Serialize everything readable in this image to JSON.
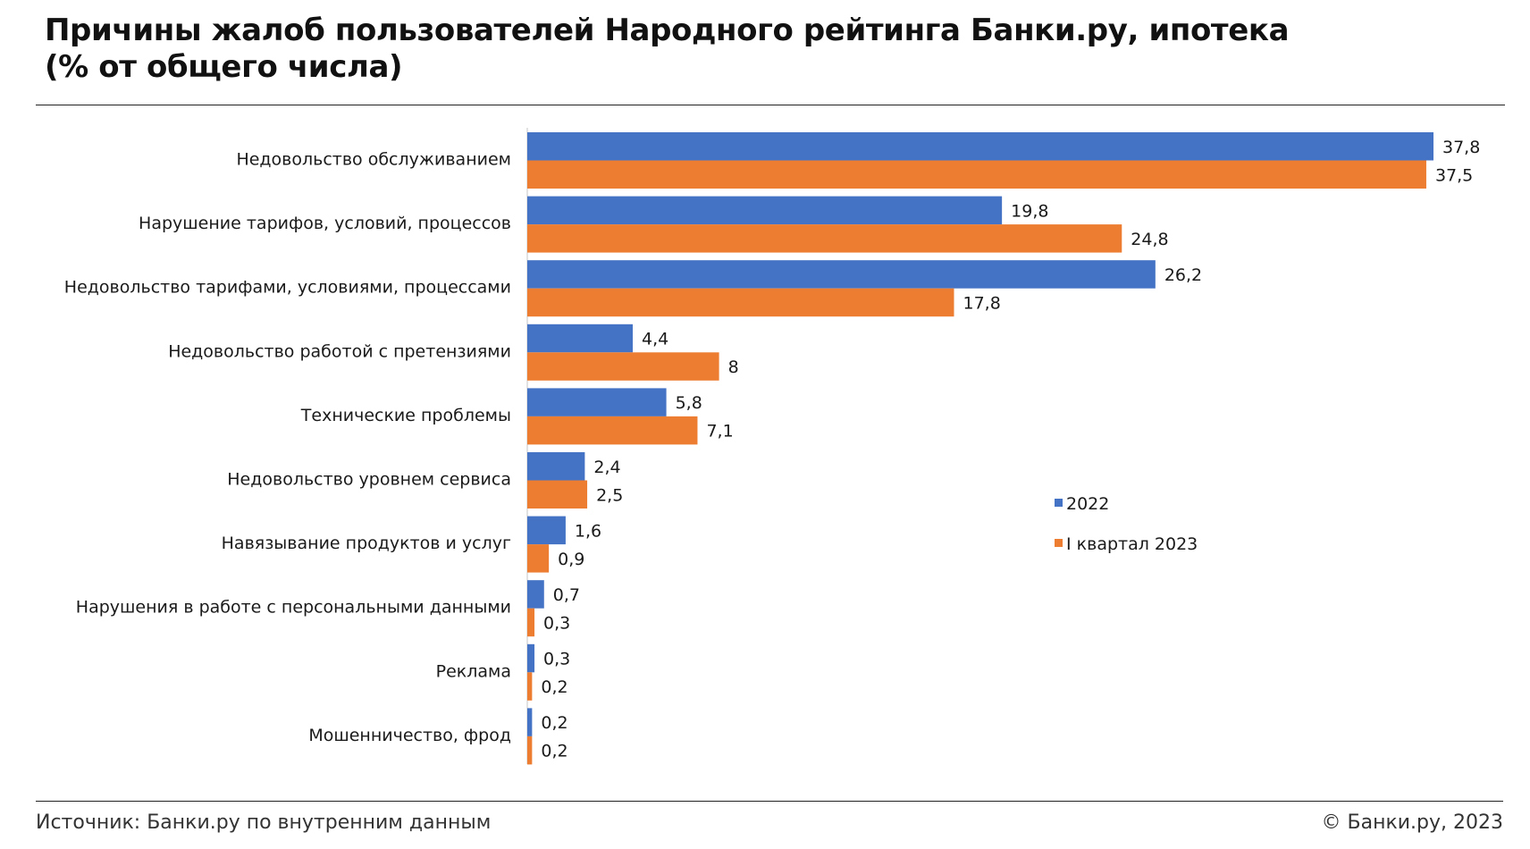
{
  "header": {
    "title_line1": "Причины жалоб пользователей Народного рейтинга Банки.ру, ипотека",
    "title_line2": "(% от общего числа)"
  },
  "footer": {
    "source": "Источник: Банки.ру по внутренним данным",
    "copyright": "© Банки.ру, 2023"
  },
  "chart_data": {
    "type": "bar",
    "orientation": "horizontal",
    "categories": [
      "Недовольство обслуживанием",
      "Нарушение тарифов, условий, процессов",
      "Недовольство тарифами, условиями, процессами",
      "Недовольство работой с претензиями",
      "Технические проблемы",
      "Недовольство уровнем сервиса",
      "Навязывание продуктов и услуг",
      "Нарушения в работе с персональными данными",
      "Реклама",
      "Мошенничество, фрод"
    ],
    "series": [
      {
        "name": "2022",
        "color": "#4472C4",
        "values": [
          37.8,
          19.8,
          26.2,
          4.4,
          5.8,
          2.4,
          1.6,
          0.7,
          0.3,
          0.2
        ],
        "labels": [
          "37,8",
          "19,8",
          "26,2",
          "4,4",
          "5,8",
          "2,4",
          "1,6",
          "0,7",
          "0,3",
          "0,2"
        ]
      },
      {
        "name": "I квартал 2023",
        "color": "#ED7D31",
        "values": [
          37.5,
          24.8,
          17.8,
          8,
          7.1,
          2.5,
          0.9,
          0.3,
          0.2,
          0.2
        ],
        "labels": [
          "37,5",
          "24,8",
          "17,8",
          "8",
          "7,1",
          "2,5",
          "0,9",
          "0,3",
          "0,2",
          "0,2"
        ]
      }
    ],
    "xlim": [
      0,
      37.8
    ],
    "grid": false,
    "legend_position": "right-middle"
  }
}
